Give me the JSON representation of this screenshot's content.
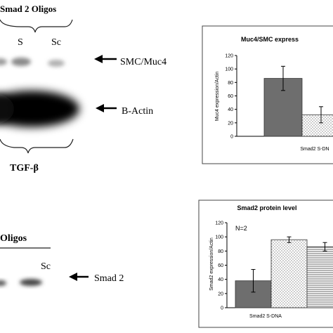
{
  "top_blot": {
    "group_label": "Smad 2 Oligos",
    "lanes": [
      "S",
      "Sc"
    ],
    "markers": [
      "SMC/Muc4",
      "B-Actin"
    ],
    "treatment_label": "TGF-β"
  },
  "bottom_blot": {
    "group_label": "Oligos",
    "lanes": [
      "Sc"
    ],
    "markers": [
      "Smad 2"
    ]
  },
  "chart_data": [
    {
      "type": "bar",
      "title": "Muc4/SMC express",
      "ylabel": "Muc4 expression/Actin",
      "xlabel": "Smad2 S-DN",
      "ylim": [
        0,
        120
      ],
      "yticks": [
        0,
        20,
        40,
        60,
        80,
        100,
        120
      ],
      "grid": false,
      "bars": [
        {
          "value": 86,
          "error": 18,
          "fill": "#6e6e6e",
          "pattern": "solid"
        },
        {
          "value": 32,
          "error": 12,
          "fill": "#ffffff",
          "pattern": "dots"
        }
      ]
    },
    {
      "type": "bar",
      "title": "Smad2 protein level",
      "ylabel": "Smad2 expression/Actin",
      "xlabel": "Smad2 S-DNA",
      "annotation": "N=2",
      "ylim": [
        0,
        120
      ],
      "yticks": [
        0,
        20,
        40,
        60,
        80,
        100,
        120
      ],
      "grid": false,
      "bars": [
        {
          "value": 38,
          "error": 16,
          "fill": "#6e6e6e",
          "pattern": "solid"
        },
        {
          "value": 96,
          "error": 4,
          "fill": "#ffffff",
          "pattern": "dots"
        },
        {
          "value": 86,
          "error": 6,
          "fill": "#ffffff",
          "pattern": "hlines"
        }
      ]
    }
  ]
}
